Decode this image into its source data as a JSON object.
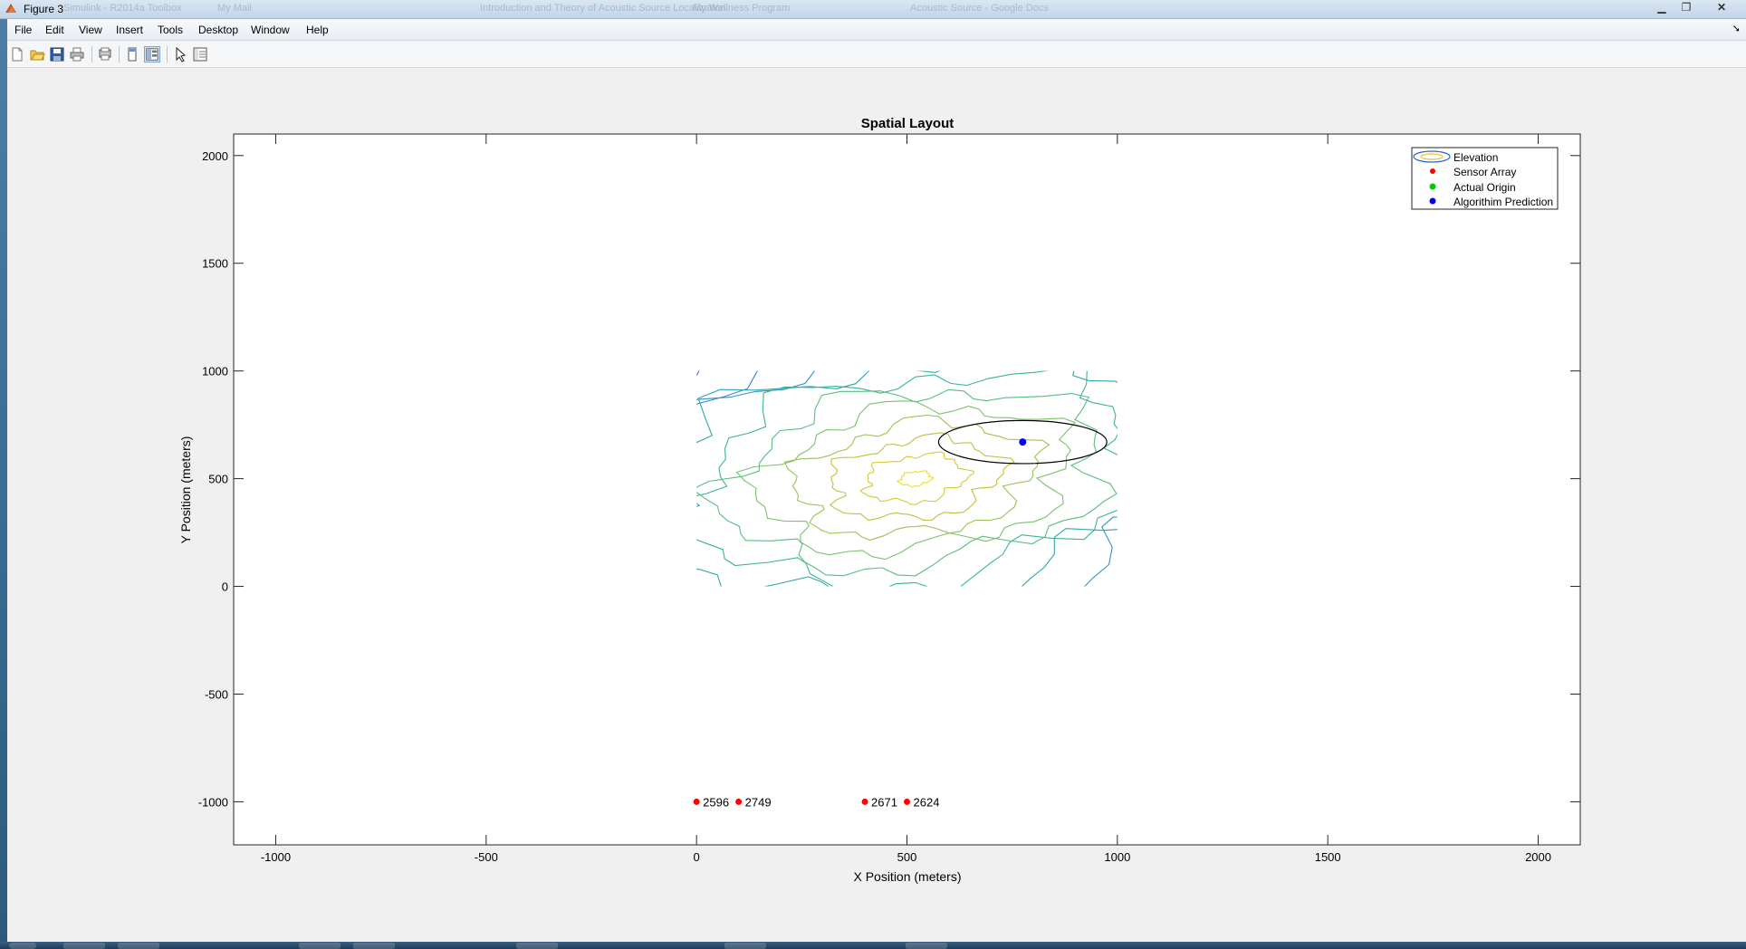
{
  "window": {
    "title": "Figure 3",
    "background_tabs": [
      "Simulink - R2014a Toolbox",
      "My Mail",
      "Introduction and Theory of Acoustic Source Localization",
      "My Wellness Program",
      "Acoustic Source - Google Docs"
    ],
    "controls": [
      "minimize-icon",
      "restore-icon",
      "close-icon"
    ]
  },
  "menu": {
    "items": [
      "File",
      "Edit",
      "View",
      "Insert",
      "Tools",
      "Desktop",
      "Window",
      "Help"
    ],
    "corner_icon": "dock-arrow-icon"
  },
  "toolbar": {
    "buttons": [
      "new-figure-icon",
      "open-file-icon",
      "save-icon",
      "print-icon",
      "print-preview-icon",
      "hide-plot-tools-icon",
      "show-plot-tools-icon",
      "edit-plot-pointer-icon",
      "property-inspector-icon"
    ]
  },
  "chart_data": {
    "type": "scatter",
    "title": "Spatial Layout",
    "xlabel": "X Position (meters)",
    "ylabel": "Y Position (meters)",
    "xlim": [
      -1100,
      2100
    ],
    "ylim": [
      -1200,
      2100
    ],
    "xticks": [
      -1000,
      -500,
      0,
      500,
      1000,
      1500,
      2000
    ],
    "yticks": [
      2000,
      1500,
      1000,
      500,
      0,
      -500,
      -1000
    ],
    "xtick_labels": [
      "-1000",
      "-500",
      "0",
      "500",
      "1000",
      "1500",
      "2000"
    ],
    "ytick_labels": [
      "2000",
      "1500",
      "1000",
      "500",
      "0",
      "-500",
      "-1000"
    ],
    "grid": false,
    "legend_position": "top-right",
    "legend": [
      "Elevation",
      "Sensor Array",
      "Actual Origin",
      "Algorithim Prediction"
    ],
    "elevation_contour": {
      "x_range": [
        0,
        1000
      ],
      "y_range": [
        0,
        1000
      ],
      "peak": [
        520,
        500
      ],
      "colormap": "parula"
    },
    "sensors": [
      {
        "x": 0,
        "y": -1000,
        "label": "2596"
      },
      {
        "x": 100,
        "y": -1000,
        "label": "2749"
      },
      {
        "x": 400,
        "y": -1000,
        "label": "2671"
      },
      {
        "x": 500,
        "y": -1000,
        "label": "2624"
      }
    ],
    "actual_origin": null,
    "prediction": {
      "x": 775,
      "y": 670
    },
    "confidence_ellipse": {
      "cx": 775,
      "cy": 670,
      "rx": 200,
      "ry": 100
    },
    "colors": {
      "sensor": "#ff0000",
      "origin": "#00cc00",
      "prediction": "#0000ff",
      "ellipse": "#000000"
    }
  }
}
